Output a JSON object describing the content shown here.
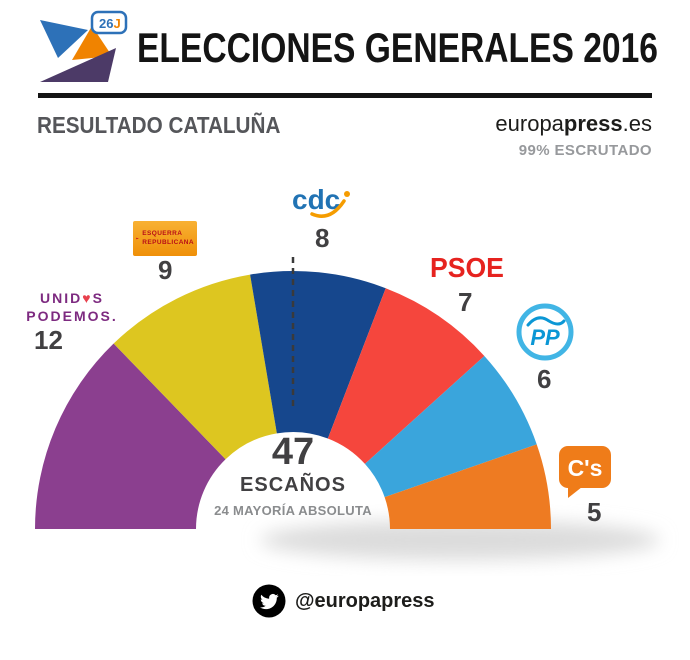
{
  "header": {
    "title": "ELECCIONES GENERALES 2016"
  },
  "subheader": {
    "result_title": "RESULTADO CATALUÑA",
    "brand_part1": "europa",
    "brand_part2": "press",
    "brand_part3": ".es",
    "scrutiny": "99% ESCRUTADO"
  },
  "center": {
    "total_seats": "47",
    "seats_label": "ESCAÑOS",
    "majority_label": "24 MAYORÍA ABSOLUTA"
  },
  "footer": {
    "twitter_handle": "@europapress"
  },
  "logos": {
    "ep26j": {
      "t1": "26",
      "t2": "J"
    },
    "podemos": {
      "line1_a": "UNID",
      "heart": "♥",
      "line1_b": "S",
      "line2": "PODEMOS."
    },
    "erc": {
      "line1": "ESQUERRA",
      "line2": "REPUBLICANA"
    },
    "cdc": {
      "text": "cdc"
    },
    "psoe": {
      "text": "PSOE"
    },
    "pp": {
      "text": "PP"
    },
    "cs": {
      "text": "C's"
    }
  },
  "chart_data": {
    "type": "hemicycle",
    "title": "RESULTADO CATALUÑA — ELECCIONES GENERALES 2016",
    "total_seats": 47,
    "majority_threshold": 24,
    "seat_angle_span_deg": 180,
    "parties": [
      {
        "name": "Unidos Podemos",
        "seats": 12,
        "color": "#8b3f8f"
      },
      {
        "name": "ERC",
        "seats": 9,
        "color": "#ddc620"
      },
      {
        "name": "CDC",
        "seats": 8,
        "color": "#16478d"
      },
      {
        "name": "PSOE",
        "seats": 7,
        "color": "#f5463d"
      },
      {
        "name": "PP",
        "seats": 6,
        "color": "#3aa5dc"
      },
      {
        "name": "C's",
        "seats": 5,
        "color": "#ee7b22"
      }
    ]
  }
}
